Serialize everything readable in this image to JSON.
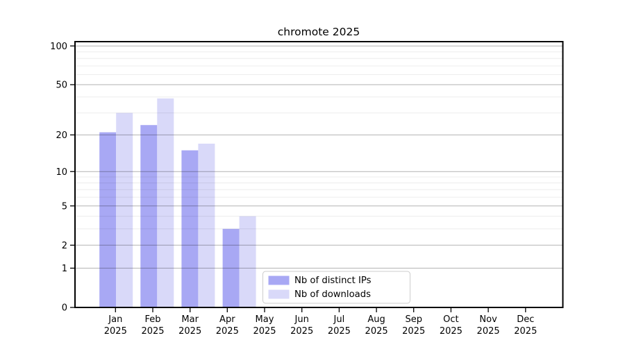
{
  "page": {
    "background": "#ffffff"
  },
  "chart_data": {
    "type": "bar",
    "title": "chromote 2025",
    "categories": [
      "Jan 2025",
      "Feb 2025",
      "Mar 2025",
      "Apr 2025",
      "May 2025",
      "Jun 2025",
      "Jul 2025",
      "Aug 2025",
      "Sep 2025",
      "Oct 2025",
      "Nov 2025",
      "Dec 2025"
    ],
    "months": [
      "Jan",
      "Feb",
      "Mar",
      "Apr",
      "May",
      "Jun",
      "Jul",
      "Aug",
      "Sep",
      "Oct",
      "Nov",
      "Dec"
    ],
    "year": "2025",
    "series": [
      {
        "name": "Nb of distinct IPs",
        "color": "#a8a8f4",
        "values": [
          21,
          24,
          15,
          3,
          0,
          0,
          0,
          0,
          0,
          0,
          0,
          0
        ]
      },
      {
        "name": "Nb of downloads",
        "color": "#d9d9f9",
        "values": [
          30,
          39,
          17,
          4,
          0,
          0,
          0,
          0,
          0,
          0,
          0,
          0
        ]
      }
    ],
    "yscale": "log1p",
    "ylim": [
      0,
      108
    ],
    "y_major_ticks": [
      0,
      1,
      2,
      5,
      10,
      20,
      50,
      100
    ],
    "y_minor_gridlines": [
      3,
      4,
      6,
      7,
      8,
      9,
      30,
      40,
      60,
      70,
      80,
      90
    ],
    "grid": true,
    "legend_position": "lower center",
    "xlabel": "",
    "ylabel": ""
  },
  "colors": {
    "major_grid": "rgba(0,0,0,0.30)",
    "minor_grid": "rgba(0,0,0,0.075)",
    "spine": "#000000",
    "legend_border": "#cccccc",
    "legend_bg": "#ffffff"
  }
}
